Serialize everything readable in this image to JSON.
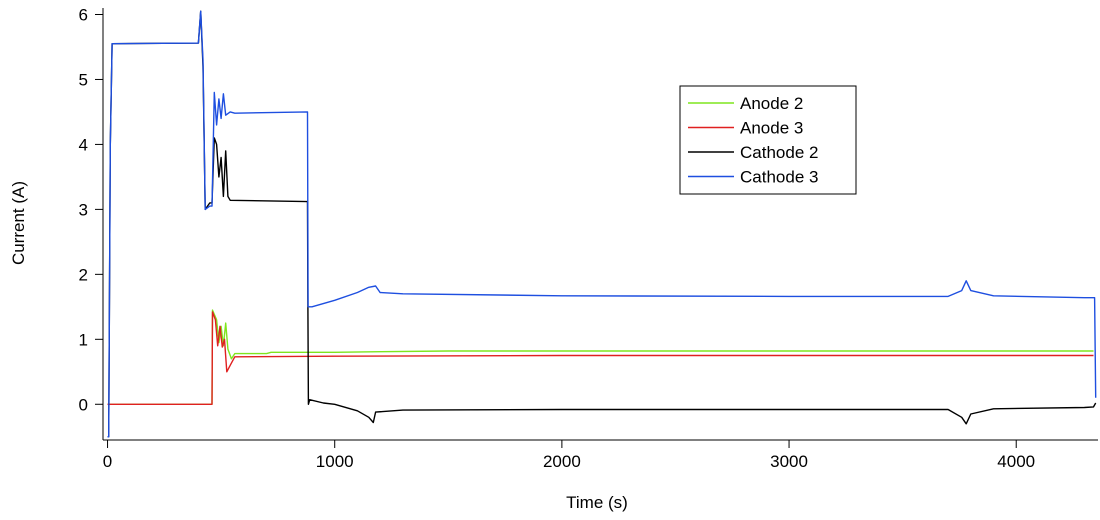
{
  "chart_data": {
    "type": "line",
    "xlabel": "Time (s)",
    "ylabel": "Current (A)",
    "xlim": [
      -20,
      4360
    ],
    "ylim": [
      -0.55,
      6.1
    ],
    "x_ticks": [
      0,
      1000,
      2000,
      3000,
      4000
    ],
    "x_tick_labels": [
      "0",
      "1000",
      "2000",
      "3000",
      "4000"
    ],
    "y_ticks": [
      0,
      1,
      2,
      3,
      4,
      5,
      6
    ],
    "y_tick_labels": [
      "0",
      "1",
      "2",
      "3",
      "4",
      "5",
      "6"
    ],
    "legend_position": "upper-right",
    "series": [
      {
        "name": "Anode 2",
        "color": "#7FE51E",
        "points": [
          [
            0,
            0
          ],
          [
            460,
            0
          ],
          [
            462,
            1.45
          ],
          [
            480,
            1.3
          ],
          [
            490,
            0.95
          ],
          [
            500,
            1.2
          ],
          [
            510,
            0.9
          ],
          [
            520,
            1.25
          ],
          [
            530,
            0.85
          ],
          [
            545,
            0.7
          ],
          [
            560,
            0.78
          ],
          [
            700,
            0.78
          ],
          [
            720,
            0.8
          ],
          [
            1000,
            0.8
          ],
          [
            1200,
            0.81
          ],
          [
            1500,
            0.82
          ],
          [
            2000,
            0.82
          ],
          [
            3000,
            0.82
          ],
          [
            4000,
            0.82
          ],
          [
            4340,
            0.82
          ]
        ]
      },
      {
        "name": "Anode 3",
        "color": "#E02020",
        "points": [
          [
            0,
            0
          ],
          [
            460,
            0
          ],
          [
            462,
            1.42
          ],
          [
            475,
            1.3
          ],
          [
            485,
            0.9
          ],
          [
            495,
            1.2
          ],
          [
            505,
            0.88
          ],
          [
            515,
            1.0
          ],
          [
            525,
            0.5
          ],
          [
            540,
            0.6
          ],
          [
            560,
            0.73
          ],
          [
            1000,
            0.74
          ],
          [
            2000,
            0.75
          ],
          [
            3000,
            0.75
          ],
          [
            4000,
            0.75
          ],
          [
            4340,
            0.75
          ]
        ]
      },
      {
        "name": "Cathode 2",
        "color": "#000000",
        "points": [
          [
            0,
            -0.5
          ],
          [
            5,
            -0.5
          ],
          [
            12,
            4.0
          ],
          [
            20,
            5.55
          ],
          [
            400,
            5.56
          ],
          [
            410,
            6.05
          ],
          [
            420,
            5.2
          ],
          [
            430,
            3.0
          ],
          [
            450,
            3.1
          ],
          [
            460,
            3.1
          ],
          [
            470,
            4.1
          ],
          [
            480,
            4.0
          ],
          [
            490,
            3.5
          ],
          [
            500,
            3.8
          ],
          [
            510,
            3.2
          ],
          [
            520,
            3.9
          ],
          [
            530,
            3.2
          ],
          [
            540,
            3.14
          ],
          [
            880,
            3.12
          ],
          [
            882,
            1.5
          ],
          [
            884,
            0
          ],
          [
            890,
            0.07
          ],
          [
            950,
            0.02
          ],
          [
            1000,
            0
          ],
          [
            1100,
            -0.1
          ],
          [
            1150,
            -0.2
          ],
          [
            1170,
            -0.28
          ],
          [
            1180,
            -0.12
          ],
          [
            1300,
            -0.09
          ],
          [
            2000,
            -0.08
          ],
          [
            3700,
            -0.08
          ],
          [
            3760,
            -0.2
          ],
          [
            3780,
            -0.3
          ],
          [
            3800,
            -0.15
          ],
          [
            3900,
            -0.07
          ],
          [
            4300,
            -0.05
          ],
          [
            4340,
            -0.04
          ],
          [
            4350,
            0.02
          ]
        ]
      },
      {
        "name": "Cathode 3",
        "color": "#1E4FE0",
        "points": [
          [
            0,
            -0.5
          ],
          [
            5,
            -0.5
          ],
          [
            12,
            4.0
          ],
          [
            20,
            5.55
          ],
          [
            400,
            5.56
          ],
          [
            410,
            6.05
          ],
          [
            420,
            5.3
          ],
          [
            430,
            3.0
          ],
          [
            450,
            3.05
          ],
          [
            460,
            3.05
          ],
          [
            470,
            4.8
          ],
          [
            480,
            4.3
          ],
          [
            490,
            4.7
          ],
          [
            500,
            4.4
          ],
          [
            510,
            4.78
          ],
          [
            520,
            4.45
          ],
          [
            540,
            4.5
          ],
          [
            560,
            4.48
          ],
          [
            880,
            4.5
          ],
          [
            883,
            1.5
          ],
          [
            900,
            1.5
          ],
          [
            1000,
            1.6
          ],
          [
            1100,
            1.72
          ],
          [
            1150,
            1.8
          ],
          [
            1180,
            1.82
          ],
          [
            1200,
            1.72
          ],
          [
            1300,
            1.7
          ],
          [
            2000,
            1.67
          ],
          [
            3000,
            1.66
          ],
          [
            3700,
            1.66
          ],
          [
            3760,
            1.75
          ],
          [
            3780,
            1.9
          ],
          [
            3800,
            1.75
          ],
          [
            3900,
            1.67
          ],
          [
            4300,
            1.64
          ],
          [
            4345,
            1.64
          ],
          [
            4350,
            0.1
          ]
        ]
      }
    ]
  }
}
